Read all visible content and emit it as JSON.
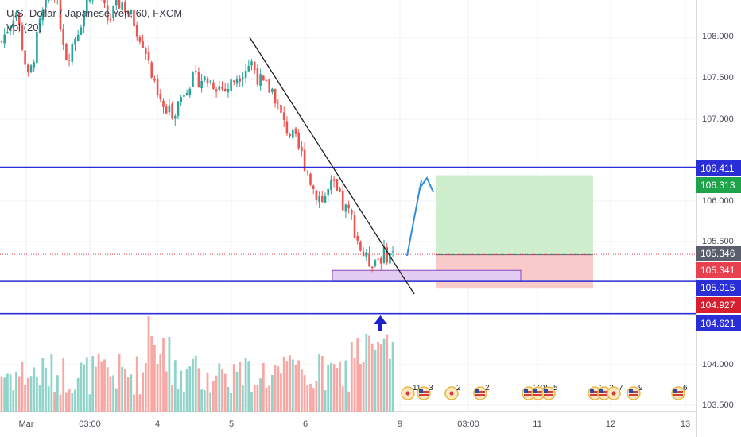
{
  "legend": {
    "symbol_line": "U.S. Dollar / Japanese Yen, 60, FXCM",
    "volume_line": "Vol (20)"
  },
  "price_axis": {
    "ticks": [
      "108.000",
      "107.500",
      "107.000",
      "106.000",
      "105.500",
      "104.000",
      "103.500"
    ],
    "tags": [
      {
        "label": "106.411",
        "color": "#2a2ed6"
      },
      {
        "label": "106.313",
        "color": "#1ea34a"
      },
      {
        "label": "105.346",
        "color": "#5b5f6b"
      },
      {
        "label": "105.341",
        "color": "#e8404f"
      },
      {
        "label": "105.015",
        "color": "#2a2ed6"
      },
      {
        "label": "104.927",
        "color": "#d6202f"
      },
      {
        "label": "104.621",
        "color": "#2a2ed6"
      }
    ]
  },
  "time_axis": {
    "labels": [
      "Mar",
      "03:00",
      "4",
      "5",
      "6",
      "9",
      "03:00",
      "11",
      "12",
      "13"
    ]
  },
  "horizontal_levels": [
    106.411,
    105.015,
    104.621
  ],
  "current_price": 105.346,
  "long_position": {
    "entry": 105.341,
    "target": 106.313,
    "stop": 104.927
  },
  "demand_zone": {
    "top": 105.15,
    "bottom": 105.015
  },
  "trend_line": {
    "from_price": 108.0,
    "to_price": 104.88
  },
  "event_markers": [
    {
      "count": "11",
      "icon": "flag-icon"
    },
    {
      "count": "3",
      "icon": "us-flag-icon"
    },
    {
      "count": "2",
      "icon": "flag-icon"
    },
    {
      "count": "2",
      "icon": "us-flag-icon"
    },
    {
      "count": "22",
      "icon": "us-flag-icon"
    },
    {
      "count": "8",
      "icon": "us-flag-icon"
    },
    {
      "count": "5",
      "icon": "us-flag-icon"
    },
    {
      "count": "2",
      "icon": "us-flag-icon"
    },
    {
      "count": "2",
      "icon": "us-flag-icon"
    },
    {
      "count": "7",
      "icon": "flag-icon"
    },
    {
      "count": "9",
      "icon": "us-flag-icon"
    },
    {
      "count": "6",
      "icon": "us-flag-icon"
    }
  ],
  "colors": {
    "up": "#26a69a",
    "down": "#ef5350",
    "vol_up": "#8fd3c9",
    "vol_down": "#f7a7a4",
    "level": "#2a2ed6",
    "target_fill": "#c9ecc9",
    "stop_fill": "#f8c4c4",
    "zone_fill": "#e3ccf2",
    "projection_arrow": "#2f8fdc",
    "signal_arrow": "#1a1fd0"
  }
}
